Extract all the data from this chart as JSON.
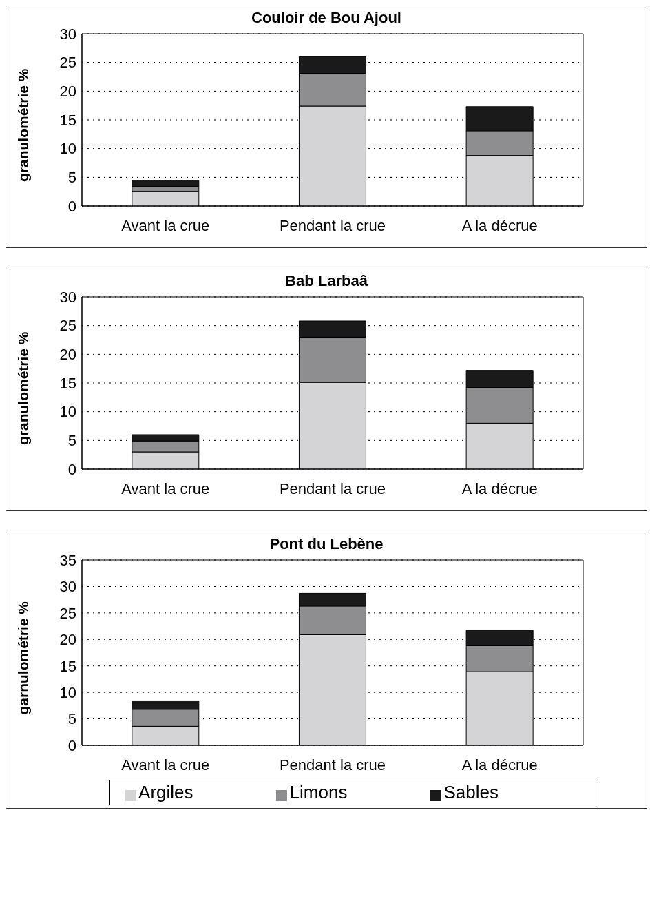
{
  "chart_data": [
    {
      "type": "bar",
      "title": "Couloir de Bou Ajoul",
      "ylabel": "granulométrie %",
      "categories": [
        "Avant la crue",
        "Pendant la crue",
        "A la décrue"
      ],
      "stacked": true,
      "series": [
        {
          "color": "#d4d4d6",
          "values": [
            2.5,
            17.4,
            8.8
          ]
        },
        {
          "color": "#8e8e90",
          "values": [
            0.9,
            5.7,
            4.3
          ]
        },
        {
          "color": "#1a1a1a",
          "values": [
            1.1,
            2.9,
            4.2
          ]
        }
      ],
      "ylim": [
        0,
        30
      ],
      "yticks": [
        0,
        5,
        10,
        15,
        20,
        25,
        30
      ],
      "grid": "y",
      "legend": false
    },
    {
      "type": "bar",
      "title": "Bab Larbaâ",
      "ylabel": "granulométrie %",
      "categories": [
        "Avant la crue",
        "Pendant la crue",
        "A la décrue"
      ],
      "stacked": true,
      "series": [
        {
          "color": "#d4d4d6",
          "values": [
            3.0,
            15.1,
            8.0
          ]
        },
        {
          "color": "#8e8e90",
          "values": [
            1.9,
            7.9,
            6.2
          ]
        },
        {
          "color": "#1a1a1a",
          "values": [
            1.1,
            2.8,
            3.0
          ]
        }
      ],
      "ylim": [
        0,
        30
      ],
      "yticks": [
        0,
        5,
        10,
        15,
        20,
        25,
        30
      ],
      "grid": "y",
      "legend": false
    },
    {
      "type": "bar",
      "title": "Pont du Lebène",
      "ylabel": "garnulométrie %",
      "categories": [
        "Avant la crue",
        "Pendant la crue",
        "A la décrue"
      ],
      "stacked": true,
      "series": [
        {
          "name": "Argiles",
          "color": "#d4d4d6",
          "values": [
            3.6,
            20.9,
            13.9
          ]
        },
        {
          "name": "Limons",
          "color": "#8e8e90",
          "values": [
            3.2,
            5.4,
            4.9
          ]
        },
        {
          "name": "Sables",
          "color": "#1a1a1a",
          "values": [
            1.6,
            2.4,
            2.9
          ]
        }
      ],
      "ylim": [
        0,
        35
      ],
      "yticks": [
        0,
        5,
        10,
        15,
        20,
        25,
        30,
        35
      ],
      "grid": "y",
      "legend": "bottom"
    }
  ]
}
